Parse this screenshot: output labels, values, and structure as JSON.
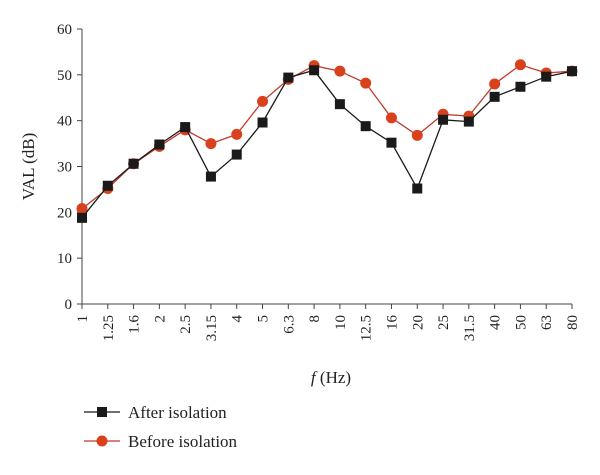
{
  "chart_data": {
    "type": "line",
    "xlabel_italic": "f",
    "xlabel_rest": " (Hz)",
    "ylabel": "VAL (dB)",
    "categories": [
      "1",
      "1.25",
      "1.6",
      "2",
      "2.5",
      "3.15",
      "4",
      "5",
      "6.3",
      "8",
      "10",
      "12.5",
      "16",
      "20",
      "25",
      "31.5",
      "40",
      "50",
      "63",
      "80"
    ],
    "ylim": [
      0,
      60
    ],
    "yticks": [
      "0",
      "10",
      "20",
      "30",
      "40",
      "50",
      "60"
    ],
    "grid": false,
    "legend_position": "bottom-left",
    "series": [
      {
        "name": "After isolation",
        "color": "#1a1a1a",
        "line_color": "#1a1a1a",
        "marker": "square",
        "values": [
          18.8,
          25.8,
          30.6,
          34.8,
          38.6,
          27.8,
          32.6,
          39.6,
          49.4,
          51.0,
          43.6,
          38.8,
          35.2,
          25.2,
          40.2,
          39.8,
          45.2,
          47.4,
          49.6,
          50.8
        ]
      },
      {
        "name": "Before isolation",
        "color": "#d9401c",
        "line_color": "#c0392b",
        "marker": "circle",
        "values": [
          20.8,
          25.2,
          30.6,
          34.4,
          38.0,
          35.0,
          37.0,
          44.2,
          49.0,
          52.0,
          50.8,
          48.2,
          40.6,
          36.8,
          41.4,
          41.0,
          48.0,
          52.2,
          50.4,
          50.8
        ]
      }
    ]
  }
}
